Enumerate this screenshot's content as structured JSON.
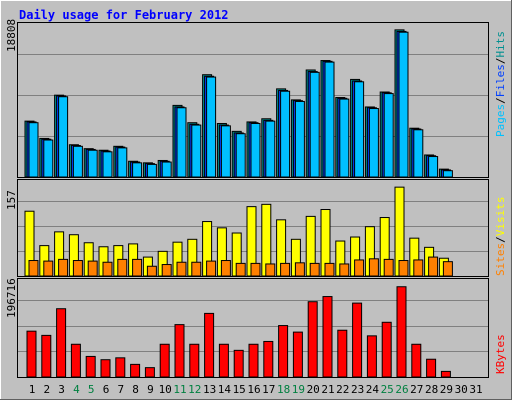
{
  "title": "Daily usage for February 2012",
  "colors": {
    "background": "#C0C0C0",
    "title": "#0000FF",
    "pages": "#00C0FF",
    "files": "#0040FF",
    "hits": "#009090",
    "visits": "#FFFF00",
    "sites": "#FF8000",
    "kbytes": "#FF0000",
    "weekend_label": "#008040",
    "weekday_label": "#000000"
  },
  "chart_data": [
    {
      "type": "bar",
      "name": "hits-files-pages",
      "max_label": "18808",
      "right_label": [
        "Pages",
        "Files",
        "Hits"
      ],
      "ylim": [
        0,
        18808
      ],
      "categories": [
        "1",
        "2",
        "3",
        "4",
        "5",
        "6",
        "7",
        "8",
        "9",
        "10",
        "11",
        "12",
        "13",
        "14",
        "15",
        "16",
        "17",
        "18",
        "19",
        "20",
        "21",
        "22",
        "23",
        "24",
        "25",
        "26",
        "27",
        "28",
        "29",
        "30",
        "31"
      ],
      "series": [
        {
          "name": "Hits",
          "values": [
            7100,
            4900,
            10400,
            4100,
            3600,
            3400,
            3900,
            2000,
            1800,
            2100,
            9100,
            6900,
            13000,
            6800,
            5800,
            7000,
            7400,
            11200,
            9800,
            13600,
            14800,
            10100,
            12400,
            8900,
            10800,
            18700,
            6200,
            2800,
            1000,
            0,
            0
          ]
        },
        {
          "name": "Files",
          "values": [
            7000,
            4800,
            10300,
            4000,
            3500,
            3300,
            3800,
            1900,
            1700,
            2000,
            8900,
            6700,
            12800,
            6600,
            5600,
            6900,
            7200,
            11000,
            9700,
            13400,
            14700,
            10000,
            12200,
            8800,
            10700,
            18500,
            6100,
            2700,
            900,
            0,
            0
          ]
        },
        {
          "name": "Pages",
          "values": [
            6900,
            4700,
            10200,
            3900,
            3400,
            3200,
            3700,
            1800,
            1600,
            1900,
            8800,
            6600,
            12700,
            6500,
            5500,
            6800,
            7100,
            10900,
            9600,
            13300,
            14600,
            9900,
            12100,
            8700,
            10600,
            18400,
            6000,
            2600,
            800,
            0,
            0
          ]
        }
      ]
    },
    {
      "type": "bar",
      "name": "visits-sites",
      "max_label": "157",
      "right_label": [
        "Sites",
        "Visits"
      ],
      "ylim": [
        0,
        157
      ],
      "categories": [
        "1",
        "2",
        "3",
        "4",
        "5",
        "6",
        "7",
        "8",
        "9",
        "10",
        "11",
        "12",
        "13",
        "14",
        "15",
        "16",
        "17",
        "18",
        "19",
        "20",
        "21",
        "22",
        "23",
        "24",
        "25",
        "26",
        "27",
        "28",
        "29",
        "30",
        "31"
      ],
      "series": [
        {
          "name": "Visits",
          "values": [
            113,
            53,
            77,
            72,
            58,
            51,
            53,
            56,
            33,
            43,
            59,
            64,
            95,
            84,
            75,
            121,
            125,
            98,
            64,
            104,
            116,
            61,
            68,
            86,
            102,
            155,
            66,
            50,
            31,
            0,
            0
          ]
        },
        {
          "name": "Sites",
          "values": [
            27,
            26,
            29,
            27,
            26,
            24,
            29,
            29,
            17,
            20,
            24,
            24,
            26,
            27,
            22,
            22,
            21,
            22,
            23,
            22,
            22,
            21,
            28,
            30,
            29,
            27,
            28,
            33,
            25,
            0,
            0
          ]
        }
      ]
    },
    {
      "type": "bar",
      "name": "kbytes",
      "max_label": "196716",
      "right_label": [
        "KBytes"
      ],
      "ylim": [
        0,
        196716
      ],
      "categories": [
        "1",
        "2",
        "3",
        "4",
        "5",
        "6",
        "7",
        "8",
        "9",
        "10",
        "11",
        "12",
        "13",
        "14",
        "15",
        "16",
        "17",
        "18",
        "19",
        "20",
        "21",
        "22",
        "23",
        "24",
        "25",
        "26",
        "27",
        "28",
        "29",
        "30",
        "31"
      ],
      "series": [
        {
          "name": "KBytes",
          "values": [
            98000,
            89000,
            146000,
            70000,
            44000,
            37000,
            41000,
            27000,
            20000,
            70000,
            112000,
            70000,
            136000,
            70000,
            57000,
            70000,
            76000,
            110000,
            96000,
            161000,
            172000,
            100000,
            158000,
            88000,
            117000,
            193000,
            70000,
            38000,
            12000,
            0,
            0
          ]
        }
      ]
    }
  ],
  "weekend_days": [
    4,
    5,
    11,
    12,
    18,
    19,
    25,
    26
  ]
}
